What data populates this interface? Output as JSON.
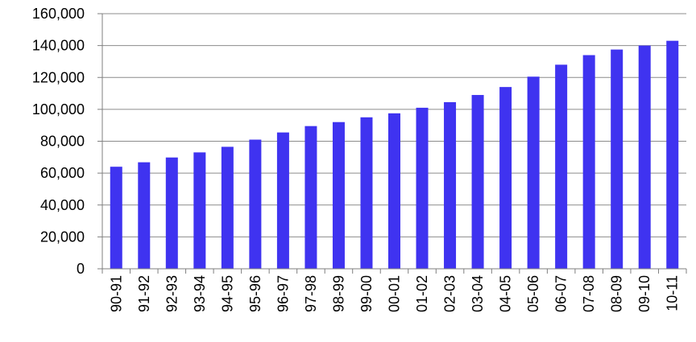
{
  "chart_data": {
    "type": "bar",
    "categories": [
      "90-91",
      "91-92",
      "92-93",
      "93-94",
      "94-95",
      "95-96",
      "96-97",
      "97-98",
      "98-99",
      "99-00",
      "00-01",
      "01-02",
      "02-03",
      "03-04",
      "04-05",
      "05-06",
      "06-07",
      "07-08",
      "08-09",
      "09-10",
      "10-11"
    ],
    "values": [
      64000,
      66800,
      69800,
      73000,
      76500,
      81000,
      85500,
      89500,
      92000,
      95000,
      97500,
      101000,
      104500,
      109000,
      114000,
      120500,
      128000,
      134000,
      137500,
      140000,
      143000
    ],
    "ylim": [
      0,
      160000
    ],
    "yticks": [
      0,
      20000,
      40000,
      60000,
      80000,
      100000,
      120000,
      140000,
      160000
    ],
    "ytick_labels": [
      "0",
      "20,000",
      "40,000",
      "60,000",
      "80,000",
      "100,000",
      "120,000",
      "140,000",
      "160,000"
    ],
    "bar_color": "#3f33f0",
    "grid": true,
    "legend": "none"
  }
}
